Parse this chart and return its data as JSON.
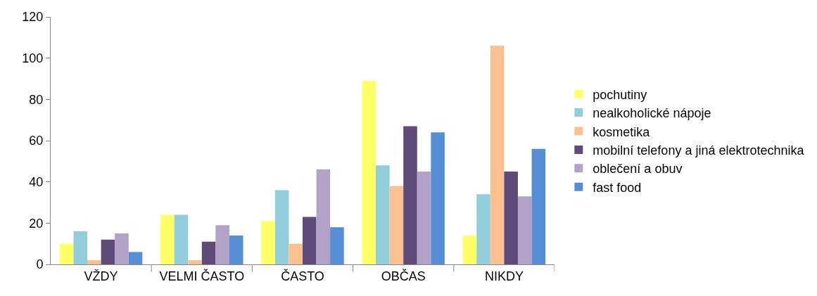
{
  "chart_data": {
    "type": "bar",
    "categories": [
      "VŽDY",
      "VELMI ČASTO",
      "ČASTO",
      "OBČAS",
      "NIKDY"
    ],
    "series": [
      {
        "name": "pochutiny",
        "color": "#ffff66",
        "values": [
          10,
          24,
          21,
          89,
          14
        ]
      },
      {
        "name": "nealkoholické nápoje",
        "color": "#92cddc",
        "values": [
          16,
          24,
          36,
          48,
          34
        ]
      },
      {
        "name": "kosmetika",
        "color": "#fac090",
        "values": [
          2,
          2,
          10,
          38,
          106
        ]
      },
      {
        "name": "mobilní telefony a jiná elektrotechnika",
        "color": "#604a7b",
        "values": [
          12,
          11,
          23,
          67,
          45
        ]
      },
      {
        "name": "oblečení a obuv",
        "color": "#b3a2c7",
        "values": [
          15,
          19,
          46,
          45,
          33
        ]
      },
      {
        "name": "fast food",
        "color": "#558ed5",
        "values": [
          6,
          14,
          18,
          64,
          56
        ]
      }
    ],
    "ylim": [
      0,
      120
    ],
    "yticks": [
      0,
      20,
      40,
      60,
      80,
      100,
      120
    ],
    "grid": false,
    "legend": "right"
  }
}
